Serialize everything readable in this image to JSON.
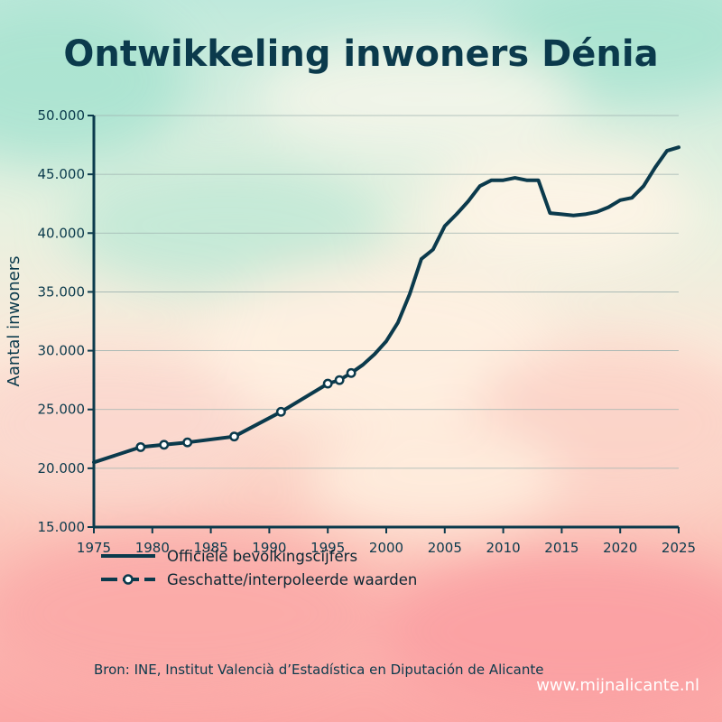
{
  "colors": {
    "primary": "#0b3a4c",
    "grid": "#9fb3b0",
    "marker_fill": "#ffffff",
    "watermark": "#ffffff"
  },
  "chart_data": {
    "type": "line",
    "title": "Ontwikkeling inwoners Dénia",
    "xlabel": "",
    "ylabel": "Aantal inwoners",
    "xlim": [
      1975,
      2025
    ],
    "ylim": [
      15000,
      50000
    ],
    "x_ticks": [
      1975,
      1980,
      1985,
      1990,
      1995,
      2000,
      2005,
      2010,
      2015,
      2020,
      2025
    ],
    "y_ticks": [
      15000,
      20000,
      25000,
      30000,
      35000,
      40000,
      45000,
      50000
    ],
    "y_tick_labels": [
      "15.000",
      "20.000",
      "25.000",
      "30.000",
      "35.000",
      "40.000",
      "45.000",
      "50.000"
    ],
    "grid": "horizontal",
    "legend": "bottom-left, below plot",
    "series": [
      {
        "name": "Officiële bevolkingscijfers",
        "style": "solid line",
        "points": [
          [
            1975,
            20500
          ],
          [
            1979,
            21800
          ],
          [
            1981,
            22000
          ],
          [
            1983,
            22200
          ],
          [
            1987,
            22700
          ],
          [
            1991,
            24800
          ],
          [
            1995,
            27200
          ],
          [
            1996,
            27500
          ],
          [
            1997,
            28100
          ],
          [
            1998,
            28800
          ],
          [
            1999,
            29700
          ],
          [
            2000,
            30800
          ],
          [
            2001,
            32400
          ],
          [
            2002,
            34800
          ],
          [
            2003,
            37800
          ],
          [
            2004,
            38600
          ],
          [
            2005,
            40600
          ],
          [
            2006,
            41600
          ],
          [
            2007,
            42700
          ],
          [
            2008,
            44000
          ],
          [
            2009,
            44500
          ],
          [
            2010,
            44500
          ],
          [
            2011,
            44700
          ],
          [
            2012,
            44500
          ],
          [
            2013,
            44500
          ],
          [
            2014,
            41700
          ],
          [
            2015,
            41600
          ],
          [
            2016,
            41500
          ],
          [
            2017,
            41600
          ],
          [
            2018,
            41800
          ],
          [
            2019,
            42200
          ],
          [
            2020,
            42800
          ],
          [
            2021,
            43000
          ],
          [
            2022,
            44000
          ],
          [
            2023,
            45600
          ],
          [
            2024,
            47000
          ],
          [
            2025,
            47300
          ]
        ]
      },
      {
        "name": "Geschatte/interpoleerde waarden",
        "style": "dashed line with open circle markers",
        "points": [
          [
            1979,
            21800
          ],
          [
            1981,
            22000
          ],
          [
            1983,
            22200
          ],
          [
            1987,
            22700
          ],
          [
            1991,
            24800
          ],
          [
            1995,
            27200
          ],
          [
            1996,
            27500
          ],
          [
            1997,
            28100
          ]
        ]
      }
    ]
  },
  "source": "Bron: INE, Institut Valencià d’Estadística en Diputación de Alicante",
  "watermark": "www.mijnalicante.nl"
}
